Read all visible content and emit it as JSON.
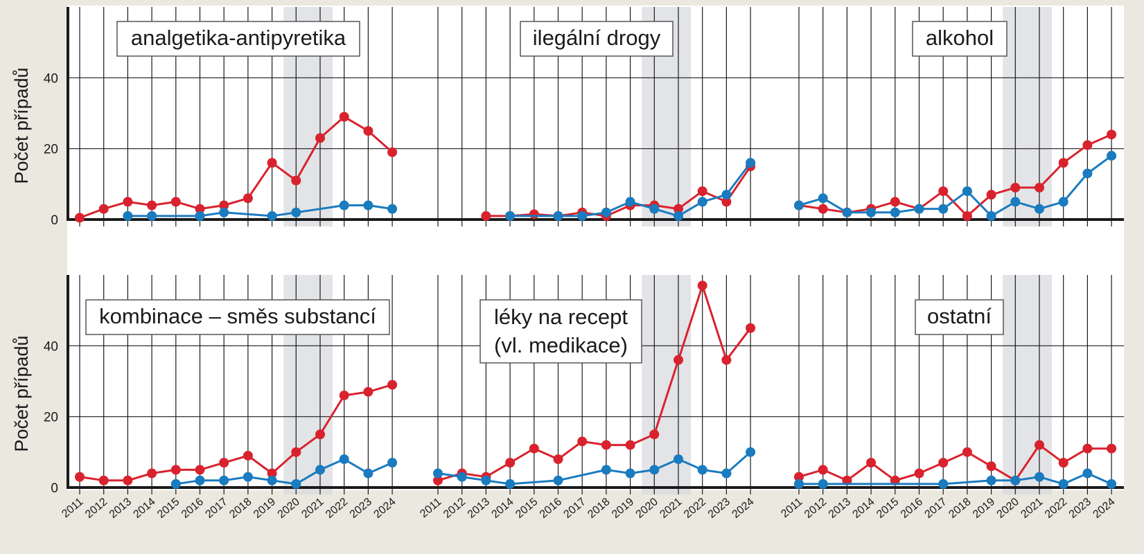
{
  "chart_data": {
    "type": "line",
    "ylabel": "Počet případů",
    "x": [
      2011,
      2012,
      2013,
      2014,
      2015,
      2016,
      2017,
      2018,
      2019,
      2020,
      2021,
      2022,
      2023,
      2024
    ],
    "ylim": [
      0,
      60
    ],
    "yticks": [
      0,
      20,
      40
    ],
    "shaded_years": [
      2020,
      2021
    ],
    "grid": true,
    "colors": {
      "red_series": "#d8232e",
      "blue_series": "#1a7bbf",
      "shading": "#d9dbdf",
      "axis": "#1a1a1a",
      "background": "#ebe8df",
      "panel": "#ffffff"
    },
    "panels": [
      {
        "title": "analgetika-antipyretika",
        "series": [
          {
            "color": "#d8232e",
            "values": [
              0.5,
              3,
              5,
              4,
              5,
              3,
              4,
              6,
              16,
              11,
              23,
              29,
              25,
              19
            ]
          },
          {
            "color": "#1a7bbf",
            "values": [
              null,
              null,
              1,
              1,
              null,
              1,
              2,
              null,
              1,
              2,
              null,
              4,
              4,
              3
            ]
          }
        ]
      },
      {
        "title": "ilegální drogy",
        "series": [
          {
            "color": "#d8232e",
            "values": [
              null,
              null,
              1,
              1,
              1.5,
              1,
              2,
              1,
              4,
              4,
              3,
              8,
              5,
              15
            ]
          },
          {
            "color": "#1a7bbf",
            "values": [
              null,
              null,
              null,
              1,
              null,
              1,
              1,
              2,
              5,
              3,
              1,
              5,
              7,
              16
            ]
          }
        ]
      },
      {
        "title": "alkohol",
        "series": [
          {
            "color": "#d8232e",
            "values": [
              4,
              3,
              2,
              3,
              5,
              3,
              8,
              1,
              7,
              9,
              9,
              16,
              21,
              24
            ]
          },
          {
            "color": "#1a7bbf",
            "values": [
              4,
              6,
              2,
              2,
              2,
              3,
              3,
              8,
              1,
              5,
              3,
              5,
              13,
              18
            ]
          }
        ]
      },
      {
        "title": "kombinace – směs substancí",
        "series": [
          {
            "color": "#d8232e",
            "values": [
              3,
              2,
              2,
              4,
              5,
              5,
              7,
              9,
              4,
              10,
              15,
              26,
              27,
              29
            ]
          },
          {
            "color": "#1a7bbf",
            "values": [
              null,
              null,
              null,
              null,
              1,
              2,
              2,
              3,
              2,
              1,
              5,
              8,
              4,
              7
            ]
          }
        ]
      },
      {
        "title": "léky na recept",
        "title2": "(vl. medikace)",
        "series": [
          {
            "color": "#d8232e",
            "values": [
              2,
              4,
              3,
              7,
              11,
              8,
              13,
              12,
              12,
              15,
              36,
              57,
              36,
              45
            ]
          },
          {
            "color": "#1a7bbf",
            "values": [
              4,
              3,
              2,
              1,
              null,
              2,
              null,
              5,
              4,
              5,
              8,
              5,
              4,
              10
            ]
          }
        ]
      },
      {
        "title": "ostatní",
        "series": [
          {
            "color": "#d8232e",
            "values": [
              3,
              5,
              2,
              7,
              2,
              4,
              7,
              10,
              6,
              2,
              12,
              7,
              11,
              11
            ]
          },
          {
            "color": "#1a7bbf",
            "values": [
              1,
              1,
              null,
              null,
              null,
              null,
              1,
              null,
              2,
              2,
              3,
              1,
              4,
              1
            ]
          }
        ]
      }
    ]
  }
}
